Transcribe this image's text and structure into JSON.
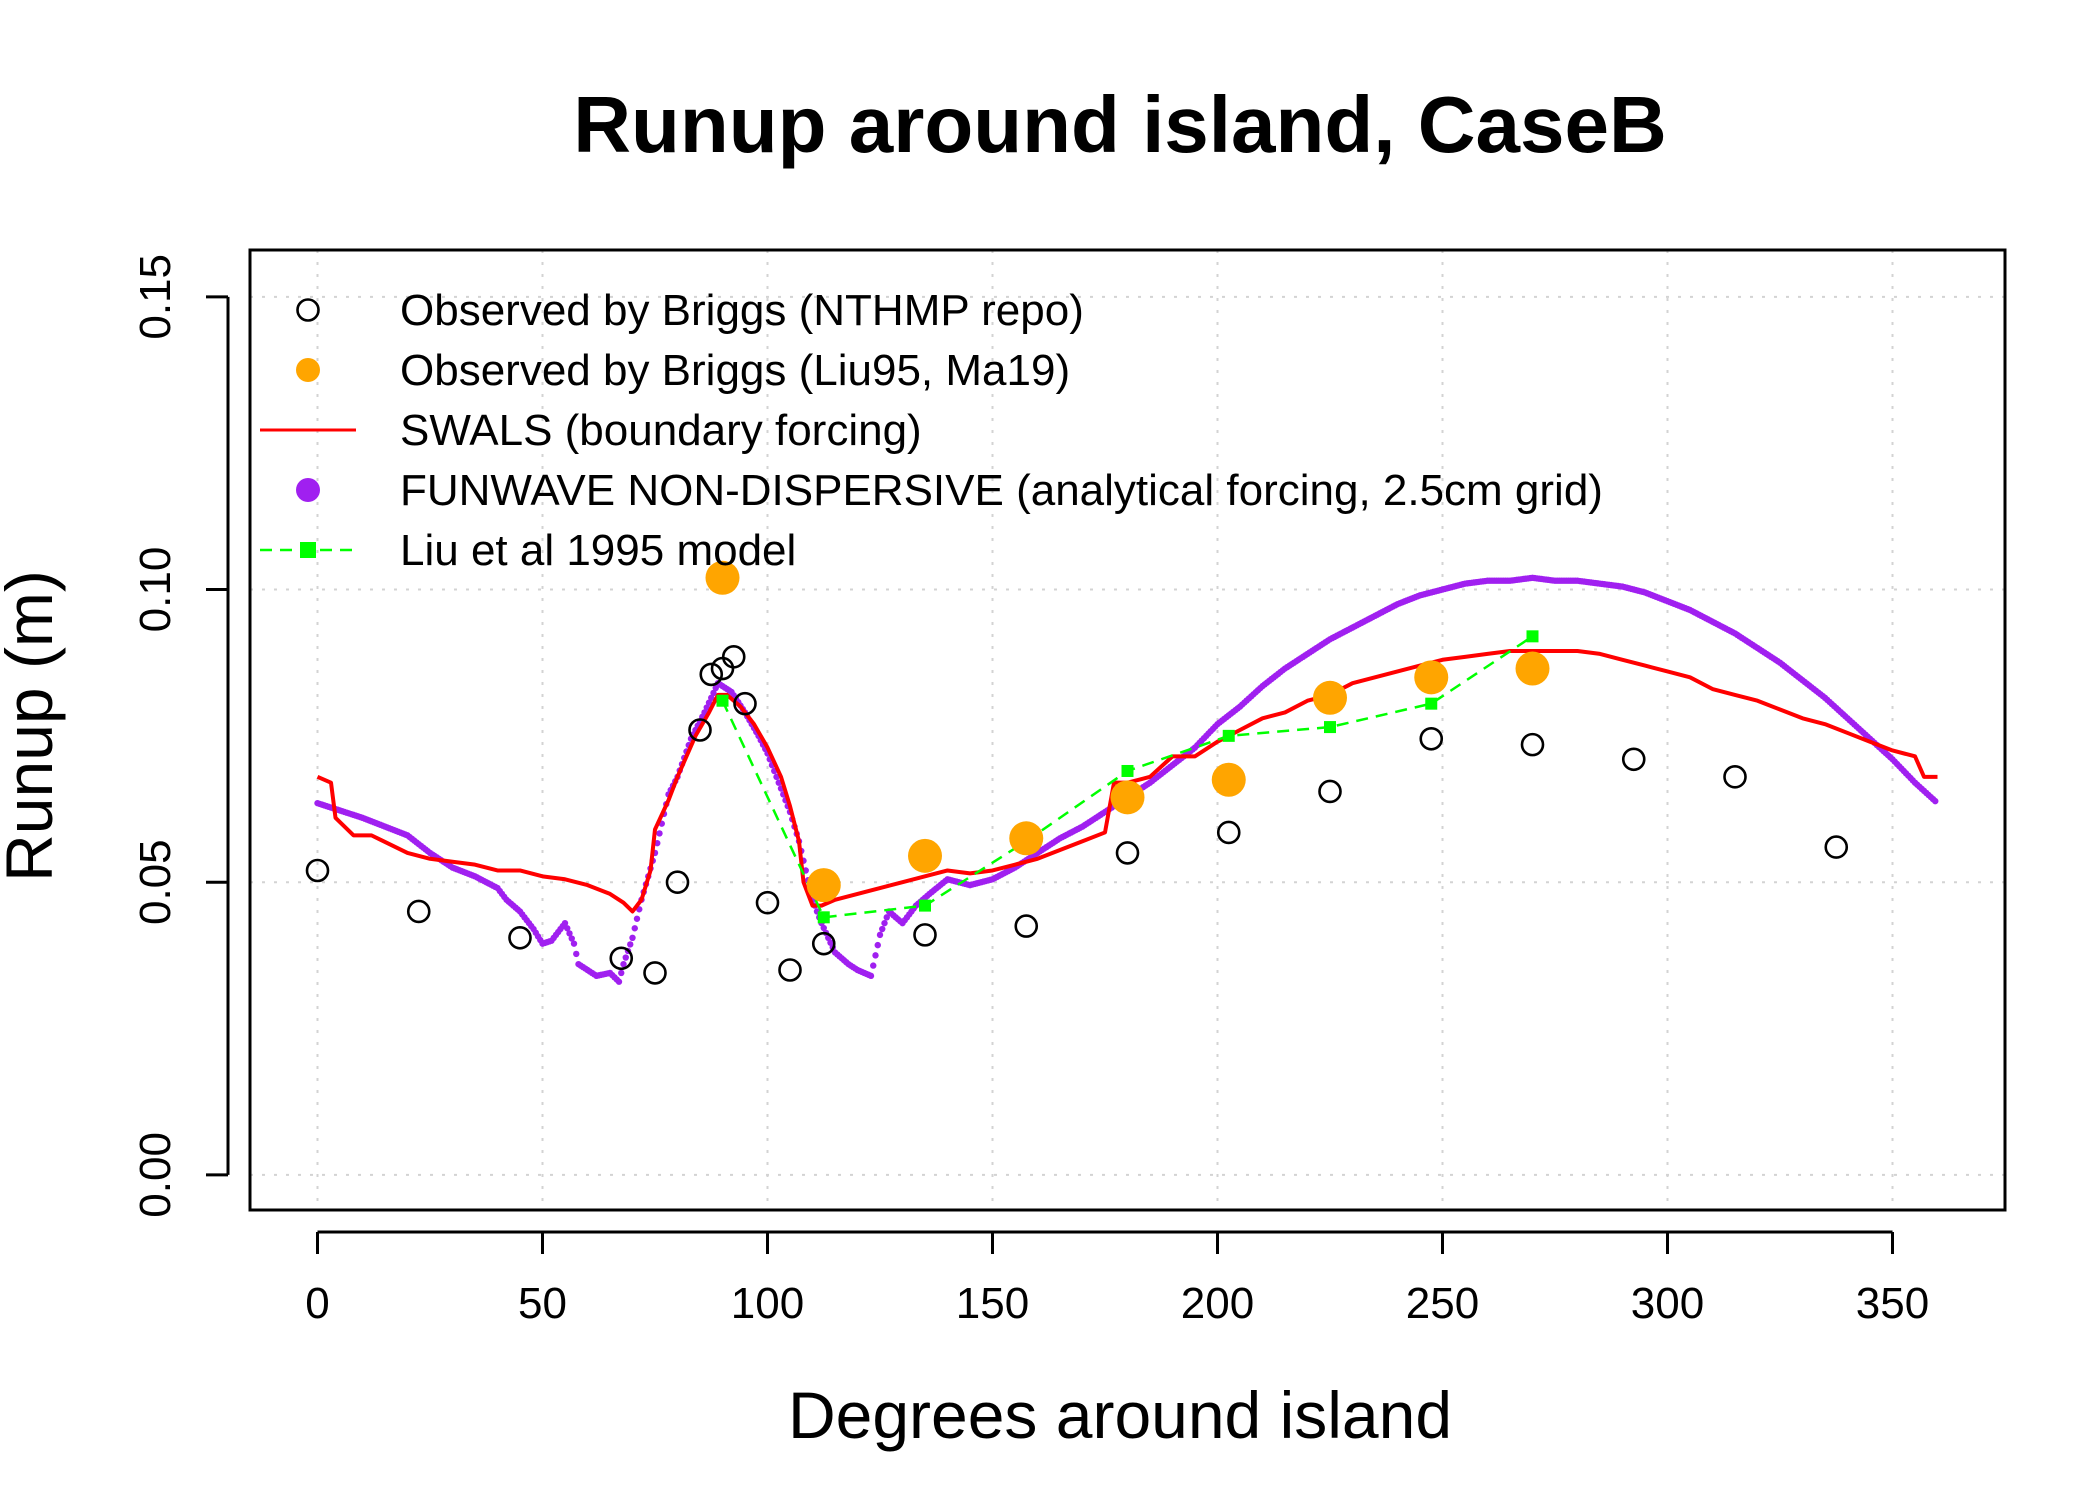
{
  "chart_data": {
    "type": "scatter",
    "title": "Runup around island, CaseB",
    "xlabel": "Degrees around island",
    "ylabel": "Runup (m)",
    "xlim": [
      -15,
      375
    ],
    "ylim": [
      -0.006,
      0.158
    ],
    "x_ticks": [
      0,
      50,
      100,
      150,
      200,
      250,
      300,
      350
    ],
    "x_tick_labels": [
      "0",
      "50",
      "100",
      "150",
      "200",
      "250",
      "300",
      "350"
    ],
    "y_ticks": [
      0.0,
      0.05,
      0.1,
      0.15
    ],
    "y_tick_labels": [
      "0.00",
      "0.05",
      "0.10",
      "0.15"
    ],
    "grid": true,
    "legend_position": "top-left",
    "series": [
      {
        "name": "Observed by Briggs (NTHMP repo)",
        "kind": "points",
        "marker": "open-circle",
        "color": "#000000",
        "points": [
          [
            0,
            0.052
          ],
          [
            22.5,
            0.045
          ],
          [
            45,
            0.0405
          ],
          [
            67.5,
            0.037
          ],
          [
            75,
            0.0345
          ],
          [
            80,
            0.05
          ],
          [
            85,
            0.076
          ],
          [
            87.5,
            0.0855
          ],
          [
            90,
            0.0865
          ],
          [
            92.5,
            0.0885
          ],
          [
            95,
            0.0805
          ],
          [
            100,
            0.0465
          ],
          [
            105,
            0.035
          ],
          [
            112.5,
            0.0395
          ],
          [
            135,
            0.041
          ],
          [
            157.5,
            0.0425
          ],
          [
            180,
            0.055
          ],
          [
            202.5,
            0.0585
          ],
          [
            225,
            0.0655
          ],
          [
            247.5,
            0.0745
          ],
          [
            270,
            0.0735
          ],
          [
            292.5,
            0.071
          ],
          [
            315,
            0.068
          ],
          [
            337.5,
            0.056
          ]
        ]
      },
      {
        "name": "Observed by Briggs (Liu95, Ma19)",
        "kind": "points",
        "marker": "filled-circle",
        "color": "#FFA500",
        "points": [
          [
            90,
            0.102
          ],
          [
            112.5,
            0.0495
          ],
          [
            135,
            0.0545
          ],
          [
            157.5,
            0.0575
          ],
          [
            180,
            0.0645
          ],
          [
            202.5,
            0.0675
          ],
          [
            225,
            0.0815
          ],
          [
            247.5,
            0.085
          ],
          [
            270,
            0.0865
          ]
        ]
      },
      {
        "name": "SWALS (boundary forcing)",
        "kind": "line",
        "color": "#FF0000",
        "points": [
          [
            0,
            0.068
          ],
          [
            3,
            0.067
          ],
          [
            4,
            0.061
          ],
          [
            8,
            0.058
          ],
          [
            12,
            0.058
          ],
          [
            20,
            0.055
          ],
          [
            25,
            0.054
          ],
          [
            30,
            0.0535
          ],
          [
            35,
            0.053
          ],
          [
            40,
            0.052
          ],
          [
            45,
            0.052
          ],
          [
            50,
            0.051
          ],
          [
            55,
            0.0505
          ],
          [
            60,
            0.0495
          ],
          [
            65,
            0.048
          ],
          [
            68,
            0.0465
          ],
          [
            70,
            0.045
          ],
          [
            72,
            0.047
          ],
          [
            74,
            0.052
          ],
          [
            75,
            0.059
          ],
          [
            78,
            0.064
          ],
          [
            80,
            0.068
          ],
          [
            84,
            0.075
          ],
          [
            87,
            0.079
          ],
          [
            89,
            0.082
          ],
          [
            91,
            0.082
          ],
          [
            94,
            0.08
          ],
          [
            97,
            0.077
          ],
          [
            100,
            0.073
          ],
          [
            103,
            0.068
          ],
          [
            105,
            0.063
          ],
          [
            107,
            0.057
          ],
          [
            108,
            0.05
          ],
          [
            110,
            0.046
          ],
          [
            112,
            0.046
          ],
          [
            115,
            0.047
          ],
          [
            120,
            0.048
          ],
          [
            125,
            0.049
          ],
          [
            130,
            0.05
          ],
          [
            135,
            0.051
          ],
          [
            140,
            0.052
          ],
          [
            145,
            0.0515
          ],
          [
            150,
            0.052
          ],
          [
            155,
            0.053
          ],
          [
            160,
            0.054
          ],
          [
            165,
            0.0555
          ],
          [
            170,
            0.057
          ],
          [
            175,
            0.0585
          ],
          [
            177,
            0.067
          ],
          [
            180,
            0.067
          ],
          [
            185,
            0.068
          ],
          [
            190,
            0.0715
          ],
          [
            195,
            0.0715
          ],
          [
            200,
            0.074
          ],
          [
            205,
            0.076
          ],
          [
            210,
            0.078
          ],
          [
            215,
            0.079
          ],
          [
            220,
            0.081
          ],
          [
            225,
            0.082
          ],
          [
            230,
            0.084
          ],
          [
            235,
            0.085
          ],
          [
            240,
            0.086
          ],
          [
            245,
            0.087
          ],
          [
            250,
            0.088
          ],
          [
            255,
            0.0885
          ],
          [
            260,
            0.089
          ],
          [
            265,
            0.0895
          ],
          [
            270,
            0.0895
          ],
          [
            275,
            0.0895
          ],
          [
            280,
            0.0895
          ],
          [
            285,
            0.089
          ],
          [
            290,
            0.088
          ],
          [
            295,
            0.087
          ],
          [
            300,
            0.086
          ],
          [
            305,
            0.085
          ],
          [
            310,
            0.083
          ],
          [
            315,
            0.082
          ],
          [
            320,
            0.081
          ],
          [
            325,
            0.0795
          ],
          [
            330,
            0.078
          ],
          [
            335,
            0.077
          ],
          [
            340,
            0.0755
          ],
          [
            345,
            0.074
          ],
          [
            350,
            0.0725
          ],
          [
            355,
            0.0715
          ],
          [
            357,
            0.068
          ],
          [
            360,
            0.068
          ]
        ]
      },
      {
        "name": "FUNWAVE NON-DISPERSIVE (analytical forcing, 2.5cm grid)",
        "kind": "dotted-line",
        "color": "#A020F0",
        "points": [
          [
            0,
            0.0635
          ],
          [
            10,
            0.061
          ],
          [
            20,
            0.058
          ],
          [
            25,
            0.055
          ],
          [
            30,
            0.0525
          ],
          [
            35,
            0.051
          ],
          [
            40,
            0.049
          ],
          [
            42,
            0.047
          ],
          [
            45,
            0.045
          ],
          [
            48,
            0.042
          ],
          [
            50,
            0.0395
          ],
          [
            52,
            0.04
          ],
          [
            55,
            0.043
          ],
          [
            57,
            0.0395
          ],
          [
            58,
            0.036
          ],
          [
            62,
            0.034
          ],
          [
            65,
            0.0345
          ],
          [
            67,
            0.033
          ],
          [
            68,
            0.036
          ],
          [
            70,
            0.0405
          ],
          [
            72,
            0.047
          ],
          [
            75,
            0.055
          ],
          [
            78,
            0.065
          ],
          [
            80,
            0.068
          ],
          [
            83,
            0.0745
          ],
          [
            86,
            0.079
          ],
          [
            89,
            0.084
          ],
          [
            92,
            0.0825
          ],
          [
            95,
            0.079
          ],
          [
            98,
            0.075
          ],
          [
            100,
            0.072
          ],
          [
            103,
            0.066
          ],
          [
            105,
            0.062
          ],
          [
            107,
            0.057
          ],
          [
            110,
            0.047
          ],
          [
            112,
            0.043
          ],
          [
            115,
            0.038
          ],
          [
            118,
            0.036
          ],
          [
            120,
            0.035
          ],
          [
            123,
            0.034
          ],
          [
            125,
            0.041
          ],
          [
            127,
            0.045
          ],
          [
            130,
            0.043
          ],
          [
            133,
            0.046
          ],
          [
            136,
            0.048
          ],
          [
            140,
            0.0505
          ],
          [
            145,
            0.0495
          ],
          [
            150,
            0.0505
          ],
          [
            155,
            0.0525
          ],
          [
            160,
            0.055
          ],
          [
            165,
            0.0575
          ],
          [
            170,
            0.0595
          ],
          [
            175,
            0.062
          ],
          [
            180,
            0.0645
          ],
          [
            185,
            0.067
          ],
          [
            190,
            0.07
          ],
          [
            195,
            0.073
          ],
          [
            200,
            0.077
          ],
          [
            205,
            0.08
          ],
          [
            210,
            0.0835
          ],
          [
            215,
            0.0865
          ],
          [
            220,
            0.089
          ],
          [
            225,
            0.0915
          ],
          [
            230,
            0.0935
          ],
          [
            235,
            0.0955
          ],
          [
            240,
            0.0975
          ],
          [
            245,
            0.099
          ],
          [
            250,
            0.1
          ],
          [
            255,
            0.101
          ],
          [
            260,
            0.1015
          ],
          [
            265,
            0.1015
          ],
          [
            270,
            0.102
          ],
          [
            275,
            0.1015
          ],
          [
            280,
            0.1015
          ],
          [
            285,
            0.101
          ],
          [
            290,
            0.1005
          ],
          [
            295,
            0.0995
          ],
          [
            300,
            0.098
          ],
          [
            305,
            0.0965
          ],
          [
            310,
            0.0945
          ],
          [
            315,
            0.0925
          ],
          [
            320,
            0.09
          ],
          [
            325,
            0.0875
          ],
          [
            330,
            0.0845
          ],
          [
            335,
            0.0815
          ],
          [
            340,
            0.078
          ],
          [
            345,
            0.0745
          ],
          [
            350,
            0.071
          ],
          [
            355,
            0.067
          ],
          [
            360,
            0.0635
          ]
        ]
      },
      {
        "name": "Liu et al 1995 model",
        "kind": "dashed-line-squares",
        "color": "#00FF00",
        "points": [
          [
            90,
            0.081
          ],
          [
            112.5,
            0.044
          ],
          [
            135,
            0.046
          ],
          [
            157.5,
            0.057
          ],
          [
            180,
            0.069
          ],
          [
            202.5,
            0.075
          ],
          [
            225,
            0.0765
          ],
          [
            247.5,
            0.0805
          ],
          [
            270,
            0.092
          ]
        ]
      }
    ]
  }
}
